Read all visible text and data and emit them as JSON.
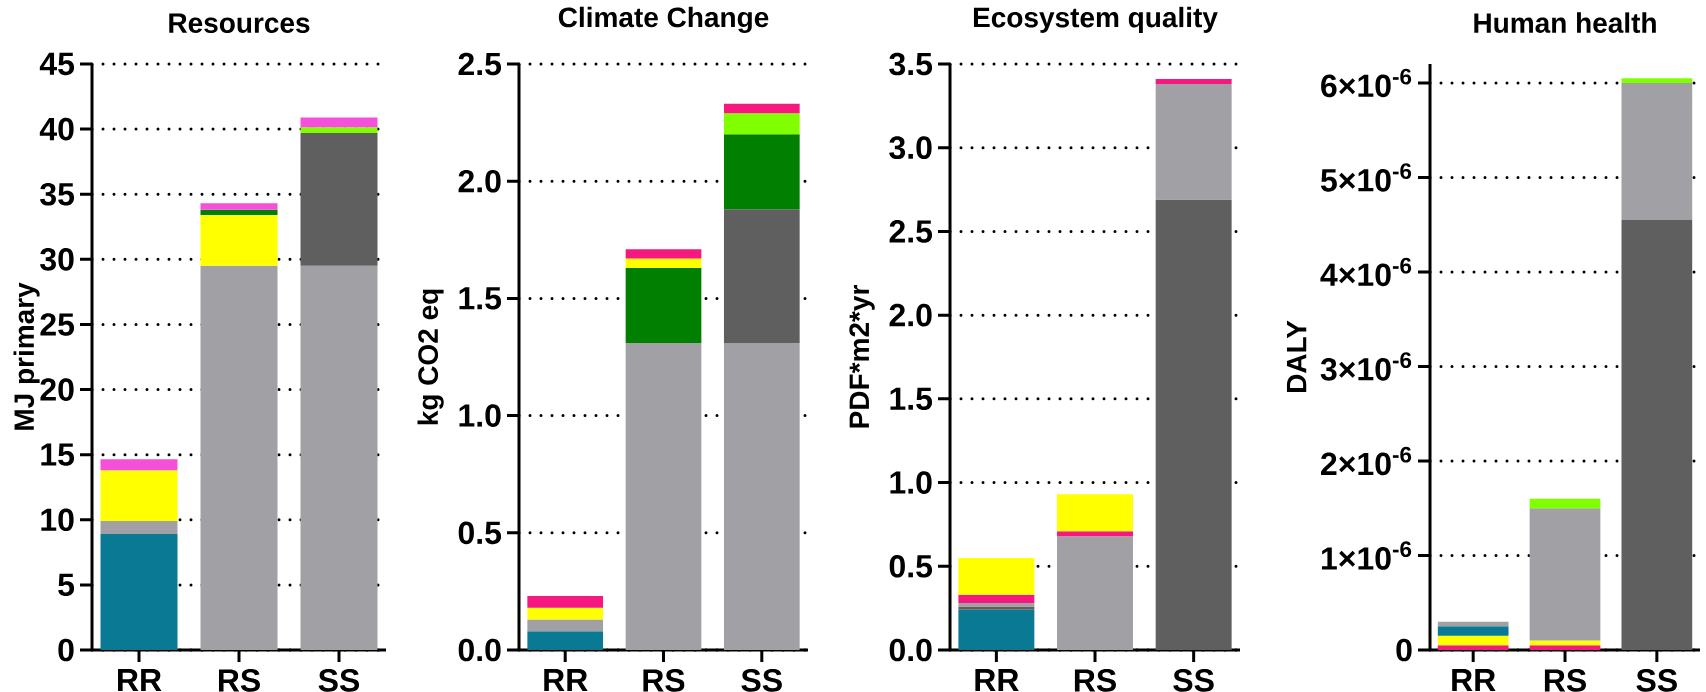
{
  "chart_data": [
    {
      "type": "bar",
      "stacked": true,
      "title": "Resources",
      "ylabel": "MJ primary",
      "categories": [
        "RR",
        "RS",
        "SS"
      ],
      "ylim": [
        0,
        45
      ],
      "yticks": [
        0,
        5,
        10,
        15,
        20,
        25,
        30,
        35,
        40,
        45
      ],
      "grid": "y",
      "series": [
        {
          "color": "#0a7a94",
          "values": [
            8.9,
            null,
            null
          ]
        },
        {
          "color": "#a0a0a5",
          "values": [
            1.0,
            29.5,
            29.5
          ]
        },
        {
          "color": "#5f5f5f",
          "values": [
            null,
            null,
            10.2
          ]
        },
        {
          "color": "#ffff00",
          "values": [
            3.9,
            3.9,
            null
          ]
        },
        {
          "color": "#007f00",
          "values": [
            null,
            0.4,
            null
          ]
        },
        {
          "color": "#80ff00",
          "values": [
            null,
            null,
            0.45
          ]
        },
        {
          "color": "#f550d8",
          "values": [
            0.85,
            0.5,
            0.75
          ]
        }
      ]
    },
    {
      "type": "bar",
      "stacked": true,
      "title": "Climate Change",
      "ylabel": "kg CO2 eq",
      "categories": [
        "RR",
        "RS",
        "SS"
      ],
      "ylim": [
        0,
        2.5
      ],
      "yticks": [
        {
          "value": 0,
          "label": "0.0"
        },
        0.5,
        {
          "value": 1,
          "label": "1.0"
        },
        1.5,
        {
          "value": 2,
          "label": "2.0"
        },
        2.5
      ],
      "grid": "y",
      "series": [
        {
          "color": "#0a7a94",
          "values": [
            0.08,
            null,
            null
          ]
        },
        {
          "color": "#a0a0a5",
          "values": [
            0.05,
            1.31,
            1.31
          ]
        },
        {
          "color": "#5f5f5f",
          "values": [
            null,
            null,
            0.57
          ]
        },
        {
          "color": "#007f00",
          "values": [
            null,
            0.32,
            0.32
          ]
        },
        {
          "color": "#ffff00",
          "values": [
            0.05,
            0.04,
            null
          ]
        },
        {
          "color": "#80ff00",
          "values": [
            null,
            null,
            0.09
          ]
        },
        {
          "color": "#f5187f",
          "values": [
            0.05,
            0.04,
            0.04
          ]
        }
      ]
    },
    {
      "type": "bar",
      "stacked": true,
      "title": "Ecosystem quality",
      "ylabel": "PDF*m2*yr",
      "categories": [
        "RR",
        "RS",
        "SS"
      ],
      "ylim": [
        0,
        3.5
      ],
      "yticks": [
        {
          "value": 0,
          "label": "0.0"
        },
        0.5,
        {
          "value": 1,
          "label": "1.0"
        },
        1.5,
        {
          "value": 2,
          "label": "2.0"
        },
        2.5,
        {
          "value": 3,
          "label": "3.0"
        },
        3.5
      ],
      "grid": "y",
      "series": [
        {
          "color": "#0a7a94",
          "values": [
            0.24,
            null,
            null
          ]
        },
        {
          "color": "#5f5f5f",
          "values": [
            0.02,
            null,
            2.69
          ]
        },
        {
          "color": "#a0a0a5",
          "values": [
            0.02,
            0.68,
            0.69
          ]
        },
        {
          "color": "#f5187f",
          "values": [
            0.05,
            0.03,
            0.03
          ]
        },
        {
          "color": "#ffff00",
          "values": [
            0.22,
            0.22,
            null
          ]
        }
      ]
    },
    {
      "type": "bar",
      "stacked": true,
      "title": "Human health",
      "ylabel": "DALY",
      "categories": [
        "RR",
        "RS",
        "SS"
      ],
      "ylim": [
        0,
        6.2e-06
      ],
      "yticks": [
        0,
        {
          "value": 1e-06,
          "label": "1×10$^{-6}$"
        },
        {
          "value": 2e-06,
          "label": "2×10$^{-6}$"
        },
        {
          "value": 3e-06,
          "label": "3×10$^{-6}$"
        },
        {
          "value": 4e-06,
          "label": "4×10$^{-6}$"
        },
        {
          "value": 5e-06,
          "label": "5×10$^{-6}$"
        },
        {
          "value": 6e-06,
          "label": "6×10$^{-6}$"
        }
      ],
      "grid": "y",
      "series": [
        {
          "color": "#f5187f",
          "values": [
            5e-08,
            5e-08,
            null
          ]
        },
        {
          "color": "#ffff00",
          "values": [
            1e-07,
            5e-08,
            null
          ]
        },
        {
          "color": "#0a7a94",
          "values": [
            1e-07,
            null,
            null
          ]
        },
        {
          "color": "#5f5f5f",
          "values": [
            null,
            null,
            4.55e-06
          ]
        },
        {
          "color": "#a0a0a5",
          "values": [
            5e-08,
            1.4e-06,
            1.45e-06
          ]
        },
        {
          "color": "#80ff00",
          "values": [
            null,
            1e-07,
            5e-08
          ]
        }
      ]
    }
  ]
}
